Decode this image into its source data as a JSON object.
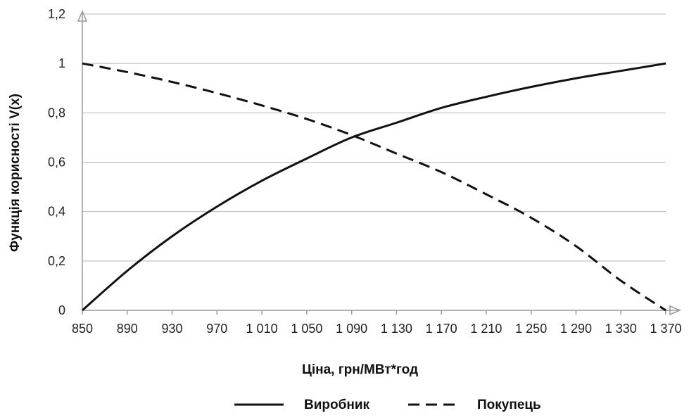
{
  "chart_data": {
    "type": "line",
    "title": "",
    "xlabel": "Ціна, грн/МВт*год",
    "ylabel": "Функція корисності V(x)",
    "x": [
      850,
      890,
      930,
      970,
      1010,
      1050,
      1090,
      1130,
      1170,
      1210,
      1250,
      1290,
      1330,
      1370
    ],
    "x_tick_labels": [
      "850",
      "890",
      "930",
      "970",
      "1 010",
      "1 050",
      "1 090",
      "1 130",
      "1 170",
      "1 210",
      "1 250",
      "1 290",
      "1 330",
      "1 370"
    ],
    "y_ticks": [
      0,
      0.2,
      0.4,
      0.6,
      0.8,
      1,
      1.2
    ],
    "y_tick_labels": [
      "0",
      "0,2",
      "0,4",
      "0,6",
      "0,8",
      "1",
      "1,2"
    ],
    "ylim": [
      0,
      1.2
    ],
    "xlim": [
      850,
      1370
    ],
    "grid": "horizontal",
    "legend_position": "bottom",
    "series": [
      {
        "name": "Виробник",
        "style": "solid",
        "color": "#111111",
        "values": [
          0,
          0.16,
          0.3,
          0.42,
          0.525,
          0.615,
          0.7,
          0.76,
          0.82,
          0.865,
          0.905,
          0.94,
          0.97,
          1.0
        ]
      },
      {
        "name": "Покупець",
        "style": "dashed",
        "color": "#111111",
        "values": [
          1.0,
          0.965,
          0.925,
          0.88,
          0.83,
          0.775,
          0.71,
          0.635,
          0.56,
          0.47,
          0.375,
          0.26,
          0.12,
          0
        ]
      }
    ]
  }
}
